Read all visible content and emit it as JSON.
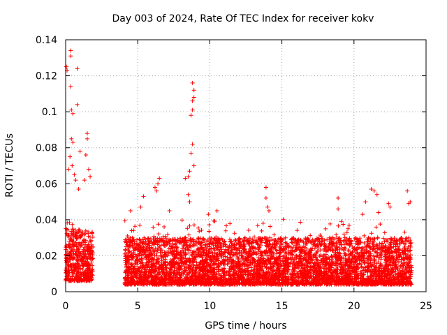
{
  "chart_data": {
    "type": "scatter",
    "title": "Day 003 of 2024, Rate Of TEC Index for receiver kokv",
    "xlabel": "GPS time / hours",
    "ylabel": "ROTI / TECUs",
    "xlim": [
      0,
      25
    ],
    "ylim": [
      0,
      0.14
    ],
    "x_ticks": [
      0,
      5,
      10,
      15,
      20,
      25
    ],
    "x_tick_labels": [
      "0",
      "5",
      "10",
      "15",
      "20",
      "25"
    ],
    "y_ticks": [
      0,
      0.02,
      0.04,
      0.06,
      0.08,
      0.1,
      0.12,
      0.14
    ],
    "y_tick_labels": [
      "0",
      "0.02",
      "0.04",
      "0.06",
      "0.08",
      "0.1",
      "0.12",
      "0.14"
    ],
    "grid": true,
    "marker": "plus",
    "color": "#ff0000",
    "series": [
      {
        "name": "ROTI",
        "segments": [
          {
            "x_range": [
              0.0,
              1.9
            ],
            "base_range": [
              0.006,
              0.035
            ]
          },
          {
            "x_range": [
              4.1,
              15.5
            ],
            "base_range": [
              0.004,
              0.03
            ]
          },
          {
            "x_range": [
              15.6,
              24.0
            ],
            "base_range": [
              0.004,
              0.03
            ]
          }
        ],
        "peaks": [
          {
            "x": 0.05,
            "y": 0.125
          },
          {
            "x": 0.1,
            "y": 0.123
          },
          {
            "x": 0.35,
            "y": 0.134
          },
          {
            "x": 0.35,
            "y": 0.131
          },
          {
            "x": 0.35,
            "y": 0.114
          },
          {
            "x": 0.4,
            "y": 0.101
          },
          {
            "x": 0.5,
            "y": 0.099
          },
          {
            "x": 0.8,
            "y": 0.124
          },
          {
            "x": 0.8,
            "y": 0.104
          },
          {
            "x": 0.4,
            "y": 0.085
          },
          {
            "x": 0.5,
            "y": 0.083
          },
          {
            "x": 0.3,
            "y": 0.075
          },
          {
            "x": 0.2,
            "y": 0.068
          },
          {
            "x": 0.45,
            "y": 0.07
          },
          {
            "x": 0.6,
            "y": 0.065
          },
          {
            "x": 0.7,
            "y": 0.062
          },
          {
            "x": 1.0,
            "y": 0.078
          },
          {
            "x": 1.4,
            "y": 0.076
          },
          {
            "x": 1.5,
            "y": 0.088
          },
          {
            "x": 1.5,
            "y": 0.085
          },
          {
            "x": 1.6,
            "y": 0.068
          },
          {
            "x": 1.3,
            "y": 0.062
          },
          {
            "x": 0.9,
            "y": 0.057
          },
          {
            "x": 1.7,
            "y": 0.064
          },
          {
            "x": 4.5,
            "y": 0.045
          },
          {
            "x": 5.2,
            "y": 0.047
          },
          {
            "x": 5.4,
            "y": 0.053
          },
          {
            "x": 6.2,
            "y": 0.058
          },
          {
            "x": 6.4,
            "y": 0.06
          },
          {
            "x": 6.5,
            "y": 0.063
          },
          {
            "x": 6.3,
            "y": 0.056
          },
          {
            "x": 7.2,
            "y": 0.045
          },
          {
            "x": 8.3,
            "y": 0.063
          },
          {
            "x": 8.5,
            "y": 0.064
          },
          {
            "x": 8.6,
            "y": 0.067
          },
          {
            "x": 8.7,
            "y": 0.077
          },
          {
            "x": 8.8,
            "y": 0.082
          },
          {
            "x": 8.9,
            "y": 0.07
          },
          {
            "x": 8.7,
            "y": 0.098
          },
          {
            "x": 8.8,
            "y": 0.101
          },
          {
            "x": 8.8,
            "y": 0.106
          },
          {
            "x": 8.9,
            "y": 0.108
          },
          {
            "x": 8.9,
            "y": 0.112
          },
          {
            "x": 8.8,
            "y": 0.116
          },
          {
            "x": 8.6,
            "y": 0.05
          },
          {
            "x": 8.5,
            "y": 0.054
          },
          {
            "x": 13.9,
            "y": 0.058
          },
          {
            "x": 13.9,
            "y": 0.052
          },
          {
            "x": 14.0,
            "y": 0.047
          },
          {
            "x": 14.1,
            "y": 0.045
          },
          {
            "x": 13.7,
            "y": 0.038
          },
          {
            "x": 18.9,
            "y": 0.052
          },
          {
            "x": 18.9,
            "y": 0.046
          },
          {
            "x": 21.2,
            "y": 0.057
          },
          {
            "x": 21.4,
            "y": 0.056
          },
          {
            "x": 21.6,
            "y": 0.054
          },
          {
            "x": 21.7,
            "y": 0.044
          },
          {
            "x": 22.4,
            "y": 0.049
          },
          {
            "x": 22.5,
            "y": 0.047
          },
          {
            "x": 23.7,
            "y": 0.056
          },
          {
            "x": 23.8,
            "y": 0.049
          },
          {
            "x": 23.9,
            "y": 0.05
          },
          {
            "x": 20.8,
            "y": 0.05
          },
          {
            "x": 20.6,
            "y": 0.043
          },
          {
            "x": 10.5,
            "y": 0.045
          },
          {
            "x": 9.9,
            "y": 0.043
          }
        ]
      }
    ]
  }
}
